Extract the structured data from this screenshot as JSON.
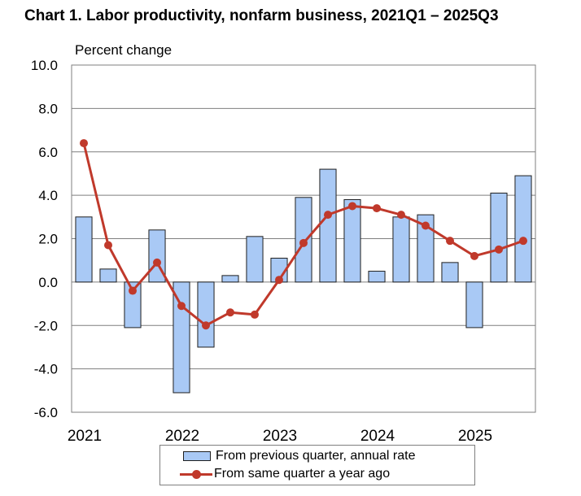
{
  "chart_data": {
    "type": "bar",
    "title": "Chart  1. Labor productivity, nonfarm business, 2021Q1 – 2025Q3",
    "ylabel": "Percent change",
    "xlabel": "",
    "ylim": [
      -6,
      10
    ],
    "yticks": [
      -6,
      -4,
      -2,
      0,
      2,
      4,
      6,
      8,
      10
    ],
    "ytick_labels": [
      "-6.0",
      "-4.0",
      "-2.0",
      "0.0",
      "2.0",
      "4.0",
      "6.0",
      "8.0",
      "10.0"
    ],
    "year_labels": [
      "2021",
      "2022",
      "2023",
      "2024",
      "2025"
    ],
    "categories": [
      "2021Q1",
      "2021Q2",
      "2021Q3",
      "2021Q4",
      "2022Q1",
      "2022Q2",
      "2022Q3",
      "2022Q4",
      "2023Q1",
      "2023Q2",
      "2023Q3",
      "2023Q4",
      "2024Q1",
      "2024Q2",
      "2024Q3",
      "2024Q4",
      "2025Q1",
      "2025Q2",
      "2025Q3"
    ],
    "grid": true,
    "legend_position": "bottom",
    "series": [
      {
        "name": "From previous quarter, annual rate",
        "kind": "bar",
        "color": "#a9c9f5",
        "values": [
          3.0,
          0.6,
          -2.1,
          2.4,
          -5.1,
          -3.0,
          0.3,
          2.1,
          1.1,
          3.9,
          5.2,
          3.8,
          0.5,
          3.0,
          3.1,
          0.9,
          -2.1,
          4.1,
          4.9
        ]
      },
      {
        "name": "From same quarter a year ago",
        "kind": "line",
        "color": "#c0392b",
        "values": [
          6.4,
          1.7,
          -0.4,
          0.9,
          -1.1,
          -2.0,
          -1.4,
          -1.5,
          0.1,
          1.8,
          3.1,
          3.5,
          3.4,
          3.1,
          2.6,
          1.9,
          1.2,
          1.5,
          1.9
        ]
      }
    ]
  }
}
